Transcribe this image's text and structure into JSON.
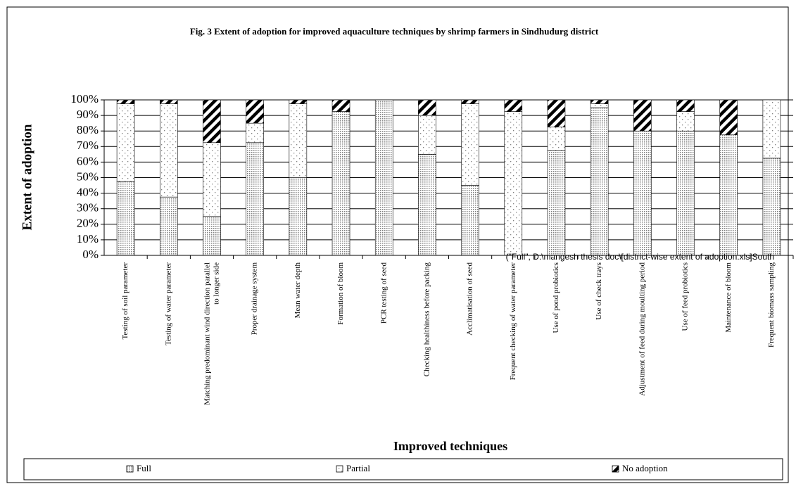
{
  "chart_data": {
    "type": "stacked-bar",
    "title": "Fig. 3 Extent of adoption for improved aquaculture techniques by shrimp farmers in Sindhudurg district",
    "y_label": "Extent of adoption",
    "x_label": "Improved techniques",
    "annotation": "(\"Full\", D:\\mangesh thesis doc\\[district-wise extent of adoption.xls]South",
    "categories": [
      "Testing of soil parameter",
      "Testing of water parameter",
      "Matching predominant wind direction parallel to longer side",
      "Proper drainage system",
      "Mean water depth",
      "Formation of bloom",
      "PCR testing of seed",
      "Checking healthiness before packing",
      "Acclimatisation of seed",
      "Frequent checking of water parameter",
      "Use of pond probiotics",
      "Use of check trays",
      "Adjustment of feed during moulting period",
      "Use of feed probiotics",
      "Maintenance of bloom",
      "Frequent biomass sampling"
    ],
    "series": [
      {
        "name": "Full",
        "pattern": "dense-dots",
        "color": "#808080",
        "values": [
          47.5,
          37.5,
          25,
          72.5,
          50,
          92.5,
          100,
          65,
          45,
          0,
          67.5,
          95,
          80,
          80,
          77.5,
          62.5
        ]
      },
      {
        "name": "Partial",
        "pattern": "sparse-dots",
        "color": "#808080",
        "values": [
          50,
          60,
          47.5,
          12.5,
          47.5,
          0,
          0,
          25,
          52.5,
          92.5,
          15,
          2.5,
          0,
          12.5,
          0,
          37.5
        ]
      },
      {
        "name": "No adoption",
        "pattern": "stripes",
        "color": "#000000",
        "values": [
          2.5,
          2.5,
          27.5,
          15,
          2.5,
          7.5,
          0,
          10,
          2.5,
          7.5,
          17.5,
          2.5,
          20,
          7.5,
          22.5,
          0
        ]
      }
    ],
    "ylim": [
      0,
      100
    ],
    "yticks": [
      {
        "value": 0,
        "label": "0%"
      },
      {
        "value": 10,
        "label": "10%"
      },
      {
        "value": 20,
        "label": "20%"
      },
      {
        "value": 30,
        "label": "30%"
      },
      {
        "value": 40,
        "label": "40%"
      },
      {
        "value": 50,
        "label": "50%"
      },
      {
        "value": 60,
        "label": "60%"
      },
      {
        "value": 70,
        "label": "70%"
      },
      {
        "value": 80,
        "label": "80%"
      },
      {
        "value": 90,
        "label": "90%"
      },
      {
        "value": 100,
        "label": "100%"
      }
    ],
    "grid": true,
    "legend": "bottom"
  }
}
